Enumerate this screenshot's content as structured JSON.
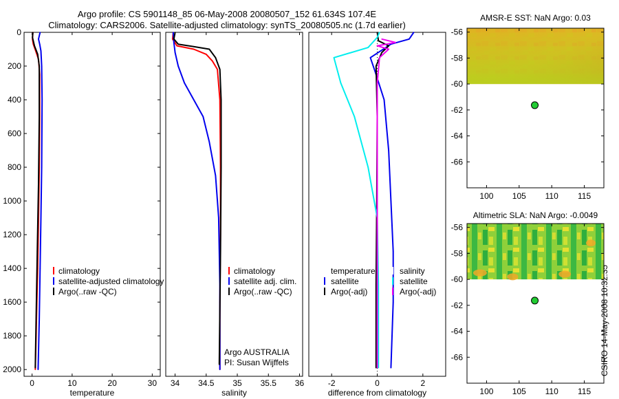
{
  "header": {
    "line1": "Argo profile: CS 5901148_85 06-May-2008 20080507_152 61.634S 107.4E",
    "line2": "Climatology: CARS2006. Satellite-adjusted climatology: synTS_20080505.nc (1.7d earlier)"
  },
  "credit": "CSIRO 14-May-2008 10:32:35",
  "colors": {
    "red": "#ff0000",
    "blue": "#0000ee",
    "black": "#000000",
    "cyan": "#00eeee",
    "magenta": "#ee00ee",
    "green": "#22cc33"
  },
  "chart_data": [
    {
      "type": "line",
      "name": "temperature-profile",
      "xlabel": "temperature",
      "ylabel": "",
      "xlim": [
        -2,
        32
      ],
      "ylim": [
        2040,
        0
      ],
      "xticks": [
        0,
        10,
        20,
        30
      ],
      "yticks": [
        0,
        200,
        400,
        600,
        800,
        1000,
        1200,
        1400,
        1600,
        1800,
        2000
      ],
      "legend": [
        "climatology",
        "satellite-adjusted climatology",
        "Argo(..raw -QC)"
      ],
      "legend_position": "lower-center",
      "series": [
        {
          "name": "climatology",
          "color": "#ff0000",
          "x": [
            0.2,
            0.1,
            0.3,
            0.9,
            1.6,
            1.9,
            1.9,
            1.8,
            1.6,
            1.4,
            1.2,
            1.0,
            0.8
          ],
          "y": [
            0,
            40,
            70,
            110,
            160,
            250,
            500,
            800,
            1100,
            1400,
            1600,
            1800,
            2000
          ]
        },
        {
          "name": "satellite-adjusted climatology",
          "color": "#0000ee",
          "x": [
            2.0,
            1.6,
            1.9,
            2.2,
            2.4,
            2.5,
            2.4,
            2.2,
            2.0,
            1.8,
            1.5
          ],
          "y": [
            0,
            40,
            70,
            110,
            200,
            400,
            800,
            1100,
            1400,
            1700,
            2000
          ]
        },
        {
          "name": "Argo(..raw -QC)",
          "color": "#000000",
          "x": [
            0.2,
            0.1,
            0.6,
            1.4,
            1.8,
            1.8,
            1.6,
            1.3,
            1.0,
            0.8
          ],
          "y": [
            0,
            30,
            80,
            130,
            200,
            500,
            900,
            1300,
            1700,
            1990
          ]
        }
      ]
    },
    {
      "type": "line",
      "name": "salinity-profile",
      "xlabel": "salinity",
      "ylabel": "",
      "xlim": [
        33.85,
        36.05
      ],
      "ylim": [
        2040,
        0
      ],
      "xticks": [
        34,
        34.5,
        35,
        35.5,
        36
      ],
      "xticklabels": [
        "34",
        "34.5",
        "35",
        "35.5",
        "36"
      ],
      "legend": [
        "climatology",
        "satellite adj. clim.",
        "Argo(..raw -QC)"
      ],
      "legend_position": "lower-center",
      "annotations": [
        "Argo AUSTRALIA",
        "PI: Susan Wijffels"
      ],
      "series": [
        {
          "name": "climatology",
          "color": "#ff0000",
          "x": [
            33.97,
            33.96,
            34.03,
            34.3,
            34.5,
            34.6,
            34.68,
            34.72,
            34.73,
            34.73,
            34.72,
            34.72
          ],
          "y": [
            0,
            40,
            80,
            100,
            130,
            170,
            220,
            400,
            800,
            1200,
            1600,
            2000
          ]
        },
        {
          "name": "satellite adj. clim.",
          "color": "#0000ee",
          "x": [
            33.97,
            33.98,
            34.0,
            34.05,
            34.15,
            34.3,
            34.45,
            34.55,
            34.65,
            34.7,
            34.72,
            34.72
          ],
          "y": [
            0,
            60,
            120,
            200,
            300,
            400,
            500,
            650,
            850,
            1100,
            1500,
            2000
          ]
        },
        {
          "name": "Argo(..raw -QC)",
          "color": "#000000",
          "x": [
            34.0,
            33.98,
            34.05,
            34.3,
            34.55,
            34.65,
            34.72,
            34.74,
            34.74,
            34.73,
            34.71
          ],
          "y": [
            0,
            40,
            70,
            85,
            100,
            150,
            220,
            400,
            800,
            1300,
            1970
          ]
        }
      ]
    },
    {
      "type": "line",
      "name": "difference-profile",
      "xlabel": "difference from climatology",
      "ylabel": "",
      "xlim": [
        -3,
        3
      ],
      "ylim": [
        2040,
        0
      ],
      "xticks": [
        -2,
        0,
        2
      ],
      "legend": [
        "temperature",
        "satellite",
        "Argo(-adj)",
        "salinity",
        "satellite",
        "Argo(-adj)"
      ],
      "legend_position": "lower-center",
      "series": [
        {
          "name": "temperature satellite",
          "color": "#0000ee",
          "x": [
            1.6,
            1.4,
            0.6,
            -0.3,
            -0.1,
            0.3,
            0.5,
            0.6,
            0.7,
            0.7,
            0.6
          ],
          "y": [
            0,
            40,
            70,
            150,
            230,
            400,
            700,
            1000,
            1300,
            1600,
            1990
          ]
        },
        {
          "name": "temperature Argo(-adj)",
          "color": "#000000",
          "x": [
            0.0,
            0.05,
            0.5,
            0.2,
            -0.05,
            0.0,
            -0.02,
            -0.05,
            -0.05
          ],
          "y": [
            0,
            50,
            80,
            120,
            200,
            500,
            1000,
            1500,
            1990
          ]
        },
        {
          "name": "salinity satellite",
          "color": "#00eeee",
          "x": [
            0.1,
            0.0,
            -0.4,
            -1.9,
            -1.6,
            -1.0,
            -0.4,
            0.0,
            0.05,
            0.05
          ],
          "y": [
            0,
            30,
            90,
            150,
            300,
            500,
            800,
            1100,
            1500,
            1990
          ]
        },
        {
          "name": "salinity Argo(-adj)",
          "color": "#ee00ee",
          "x": [
            0.2,
            0.8,
            0.0,
            0.5,
            0.1,
            0.0,
            0.0,
            0.0
          ],
          "y": [
            40,
            60,
            80,
            100,
            150,
            300,
            1000,
            1990
          ]
        }
      ]
    },
    {
      "type": "heatmap",
      "name": "amsr-sst-map",
      "title": "AMSR-E SST: NaN Argo: 0.03",
      "xlim": [
        97,
        118
      ],
      "ylim": [
        -68,
        -55.7
      ],
      "xticks": [
        100,
        105,
        110,
        115
      ],
      "yticks": [
        -56,
        -58,
        -60,
        -62,
        -64,
        -66
      ],
      "data_extent_lat": [
        -60,
        -55.7
      ],
      "float_position": {
        "lon": 107.4,
        "lat": -61.634
      }
    },
    {
      "type": "heatmap",
      "name": "altimetric-sla-map",
      "title": "Altimetric SLA: NaN Argo: -0.0049",
      "xlim": [
        97,
        118
      ],
      "ylim": [
        -68,
        -55.7
      ],
      "xticks": [
        100,
        105,
        110,
        115
      ],
      "yticks": [
        -56,
        -58,
        -60,
        -62,
        -64,
        -66
      ],
      "data_extent_lat": [
        -60,
        -55.7
      ],
      "float_position": {
        "lon": 107.4,
        "lat": -61.634
      }
    }
  ]
}
